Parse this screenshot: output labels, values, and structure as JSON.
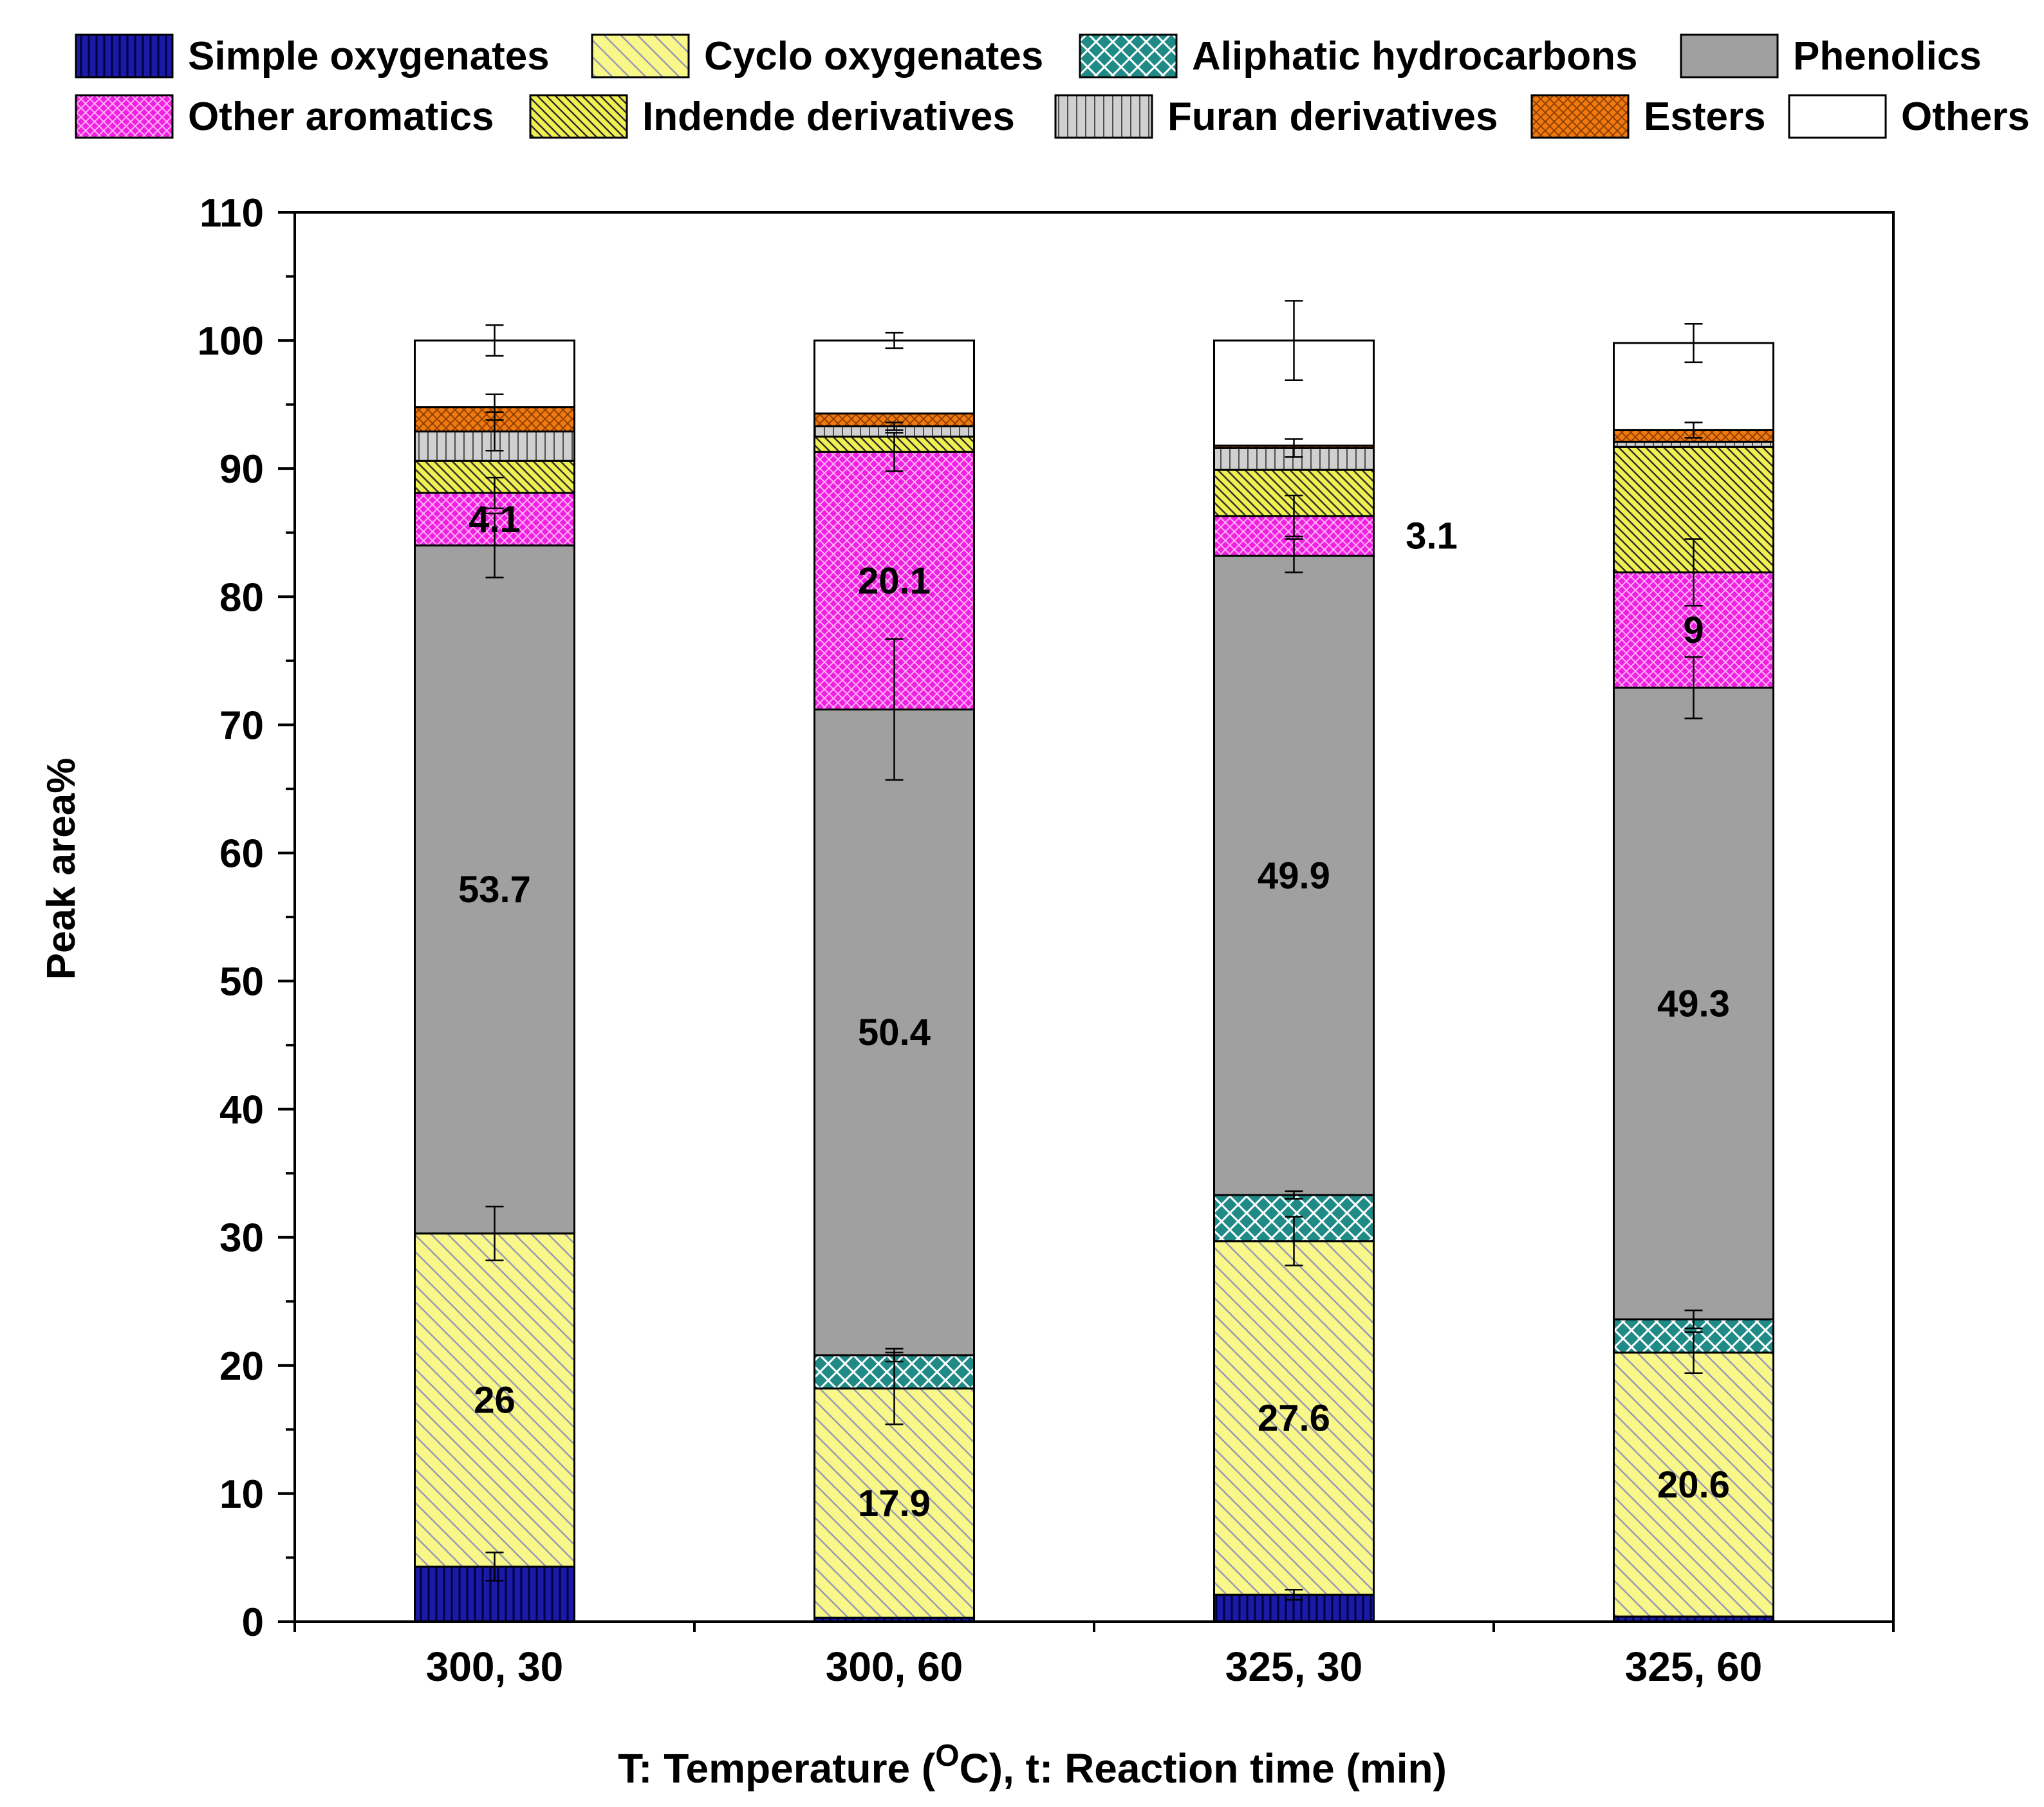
{
  "chart_data": {
    "type": "bar",
    "stacked": true,
    "title": "",
    "xlabel_main": "T: Temperature (",
    "xlabel_sup": "O",
    "xlabel_rest": "C), t: Reaction time (min)",
    "ylabel": "Peak area%",
    "ylim": [
      0,
      110
    ],
    "yticks": [
      "0",
      "10",
      "20",
      "30",
      "40",
      "50",
      "60",
      "70",
      "80",
      "90",
      "100",
      "110"
    ],
    "categories": [
      "300, 30",
      "300, 60",
      "325, 30",
      "325, 60"
    ],
    "legend_position": "top",
    "series": [
      {
        "name": "Simple oxygenates",
        "color": "#1a1aa6",
        "pattern": "vlines",
        "values": [
          4.3,
          0.3,
          2.1,
          0.4
        ],
        "errors": [
          1.1,
          0,
          0.4,
          0
        ]
      },
      {
        "name": "Cyclo oxygenates",
        "color": "#f8f88a",
        "pattern": "diag",
        "values": [
          26.0,
          17.9,
          27.6,
          20.6
        ],
        "errors": [
          2.1,
          2.8,
          1.9,
          1.6
        ]
      },
      {
        "name": "Aliphatic hydrocarbons",
        "color": "#1f8a86",
        "pattern": "cross",
        "values": [
          0,
          2.6,
          3.6,
          2.6
        ],
        "errors": [
          0,
          0.5,
          0.3,
          0.7
        ]
      },
      {
        "name": "Phenolics",
        "color": "#a0a0a0",
        "pattern": "none",
        "values": [
          53.7,
          50.4,
          49.9,
          49.3
        ],
        "errors": [
          2.5,
          5.5,
          1.3,
          2.4
        ]
      },
      {
        "name": "Other aromatics",
        "color": "#f020e0",
        "pattern": "cross",
        "values": [
          4.1,
          20.1,
          3.1,
          9.0
        ],
        "errors": [
          1.2,
          1.5,
          1.6,
          2.6
        ]
      },
      {
        "name": "Indende derivatives",
        "color": "#f0f050",
        "pattern": "diag2",
        "values": [
          2.5,
          1.2,
          3.6,
          9.8
        ],
        "errors": [
          0,
          0,
          0,
          0
        ]
      },
      {
        "name": "Furan derivatives",
        "color": "#d0d0d0",
        "pattern": "vlines",
        "values": [
          2.3,
          0.8,
          1.7,
          0.4
        ],
        "errors": [
          1.5,
          0.3,
          0.7,
          0
        ]
      },
      {
        "name": "Esters",
        "color": "#f07a10",
        "pattern": "cross",
        "values": [
          1.9,
          1.0,
          0.2,
          0.9
        ],
        "errors": [
          1.0,
          0,
          0,
          0.6
        ]
      },
      {
        "name": "Others",
        "color": "#ffffff",
        "pattern": "none",
        "values": [
          5.2,
          5.7,
          8.2,
          6.8
        ],
        "errors": [
          1.2,
          0.6,
          3.1,
          1.5
        ]
      }
    ],
    "data_labels": [
      {
        "category": 0,
        "series": "Cyclo oxygenates",
        "text": "26"
      },
      {
        "category": 0,
        "series": "Phenolics",
        "text": "53.7"
      },
      {
        "category": 0,
        "series": "Other aromatics",
        "text": "4.1"
      },
      {
        "category": 1,
        "series": "Cyclo oxygenates",
        "text": "17.9"
      },
      {
        "category": 1,
        "series": "Phenolics",
        "text": "50.4"
      },
      {
        "category": 1,
        "series": "Other aromatics",
        "text": "20.1"
      },
      {
        "category": 2,
        "series": "Cyclo oxygenates",
        "text": "27.6"
      },
      {
        "category": 2,
        "series": "Phenolics",
        "text": "49.9"
      },
      {
        "category": 2,
        "series": "Other aromatics",
        "text": "3.1",
        "outside": true
      },
      {
        "category": 3,
        "series": "Cyclo oxygenates",
        "text": "20.6"
      },
      {
        "category": 3,
        "series": "Phenolics",
        "text": "49.3"
      },
      {
        "category": 3,
        "series": "Other aromatics",
        "text": "9"
      }
    ]
  }
}
